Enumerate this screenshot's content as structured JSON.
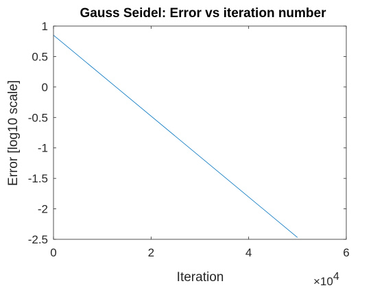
{
  "chart_data": {
    "type": "line",
    "title": "Gauss Seidel: Error vs iteration number",
    "xlabel": "Iteration",
    "ylabel": "Error [log10 scale]",
    "x_multiplier_base": "×10",
    "x_multiplier_exp": "4",
    "xlim": [
      0,
      6
    ],
    "ylim": [
      -2.5,
      1
    ],
    "x_ticks": [
      0,
      2,
      4,
      6
    ],
    "x_tick_labels": [
      "0",
      "2",
      "4",
      "6"
    ],
    "y_ticks": [
      1,
      0.5,
      0,
      -0.5,
      -1,
      -1.5,
      -2,
      -2.5
    ],
    "y_tick_labels": [
      "1",
      "0.5",
      "0",
      "-0.5",
      "-1",
      "-1.5",
      "-2",
      "-2.5"
    ],
    "grid": false,
    "series": [
      {
        "color": "#0072BD",
        "x": [
          0,
          5
        ],
        "y": [
          0.85,
          -2.47
        ]
      }
    ]
  }
}
